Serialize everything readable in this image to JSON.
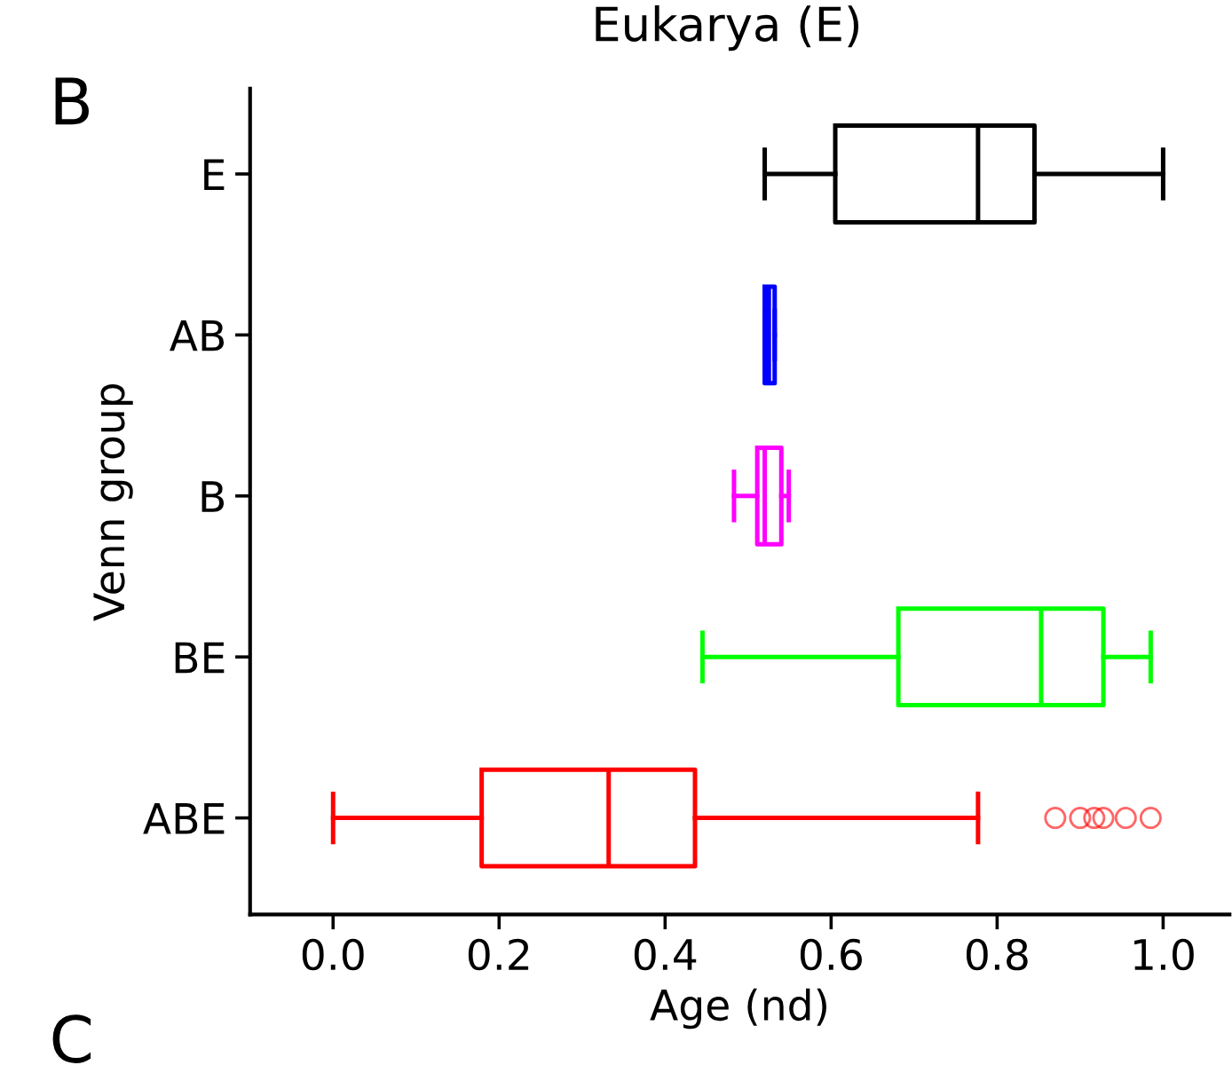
{
  "chart_data": {
    "type": "box",
    "orientation": "horizontal",
    "title": "Eukarya (E)",
    "xlabel": "Age (nd)",
    "ylabel": "Venn group",
    "categories": [
      "E",
      "AB",
      "B",
      "BE",
      "ABE"
    ],
    "colors": [
      "#000000",
      "#0000ff",
      "#ff00ff",
      "#00ff00",
      "#ff0000"
    ],
    "boxes": [
      {
        "low": 0.52,
        "q1": 0.605,
        "median": 0.777,
        "q3": 0.845,
        "high": 1.0
      },
      {
        "low": 0.52,
        "q1": 0.52,
        "median": 0.525,
        "q3": 0.532,
        "high": 0.532
      },
      {
        "low": 0.483,
        "q1": 0.511,
        "median": 0.52,
        "q3": 0.54,
        "high": 0.549
      },
      {
        "low": 0.445,
        "q1": 0.681,
        "median": 0.853,
        "q3": 0.928,
        "high": 0.985
      },
      {
        "low": 0.0,
        "q1": 0.179,
        "median": 0.332,
        "q3": 0.436,
        "high": 0.777,
        "outliers": [
          0.87,
          0.9,
          0.917,
          0.928,
          0.955,
          0.985
        ]
      }
    ],
    "xlim": [
      -0.1,
      1.08
    ],
    "xticks": [
      {
        "value": 0,
        "label": "0.0"
      },
      {
        "value": 0.2,
        "label": "0.2"
      },
      {
        "value": 0.4,
        "label": "0.4"
      },
      {
        "value": 0.6,
        "label": "0.6"
      },
      {
        "value": 0.8,
        "label": "0.8"
      },
      {
        "value": 1,
        "label": "1.0"
      }
    ],
    "grid": false,
    "legend": false,
    "annotations": [
      "B",
      "C"
    ]
  }
}
